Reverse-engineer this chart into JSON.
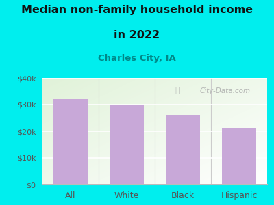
{
  "categories": [
    "All",
    "White",
    "Black",
    "Hispanic"
  ],
  "values": [
    32000,
    30000,
    26000,
    21000
  ],
  "bar_color": "#C8A8D8",
  "title_line1": "Median non-family household income",
  "title_line2": "in 2022",
  "subtitle": "Charles City, IA",
  "subtitle_color": "#008888",
  "title_color": "#111111",
  "background_color": "#00EEEE",
  "ylim": [
    0,
    40000
  ],
  "yticks": [
    0,
    10000,
    20000,
    30000,
    40000
  ],
  "ytick_labels": [
    "$0",
    "$10k",
    "$20k",
    "$30k",
    "$40k"
  ],
  "watermark": "City-Data.com",
  "watermark_color": "#AAAAAA",
  "tick_color": "#555555"
}
